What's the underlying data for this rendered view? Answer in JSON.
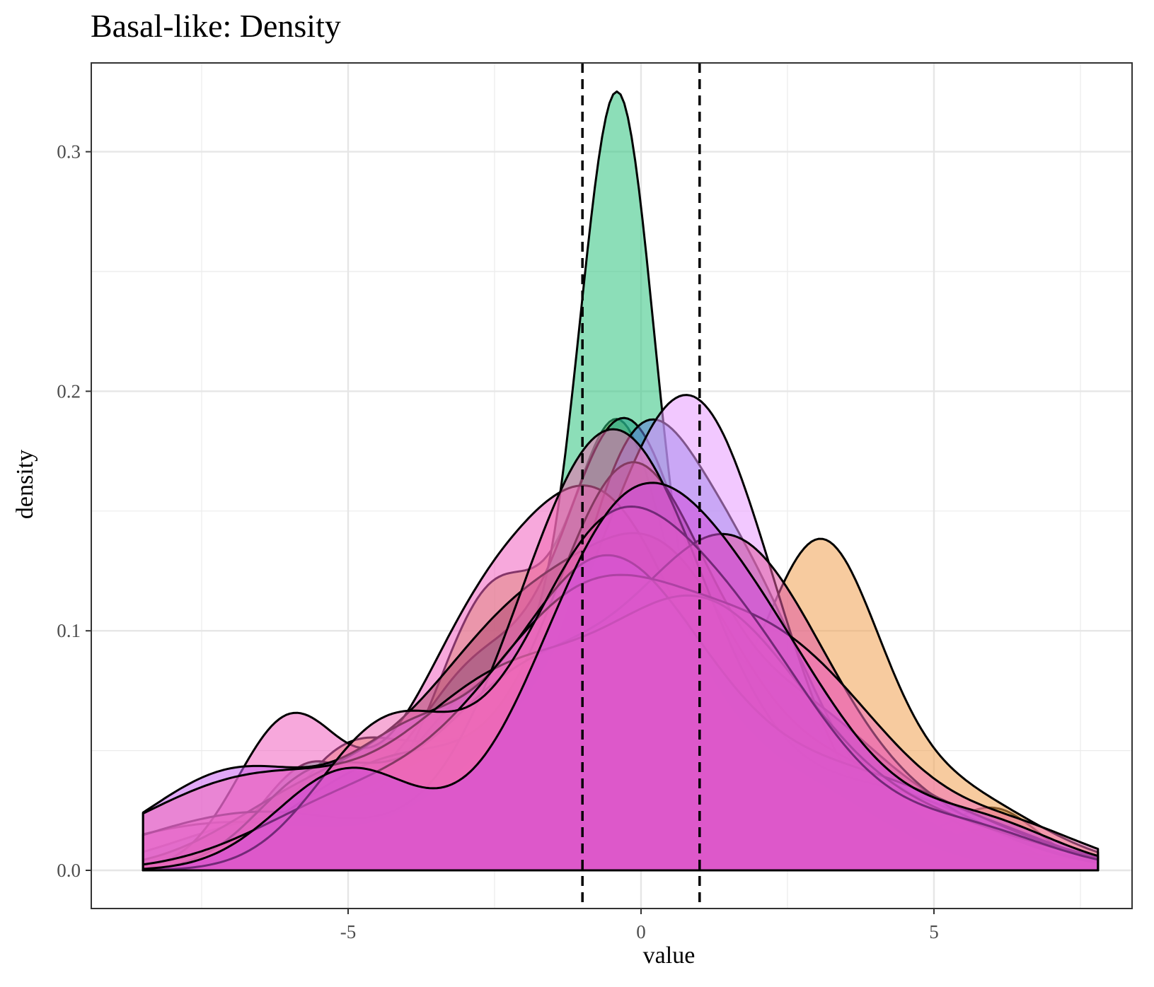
{
  "chart_data": {
    "type": "area",
    "title": "Basal-like: Density",
    "xlabel": "value",
    "ylabel": "density",
    "xlim": [
      -8.75,
      8.5
    ],
    "ylim": [
      -0.015,
      0.33
    ],
    "x_ticks": [
      -5,
      0,
      5
    ],
    "x_tick_labels": [
      "-5",
      "0",
      "5"
    ],
    "y_ticks": [
      0.0,
      0.1,
      0.2,
      0.3
    ],
    "y_tick_labels": [
      "0.0",
      "0.1",
      "0.2",
      "0.3"
    ],
    "x_range": [
      -8.5,
      7.8
    ],
    "grid": true,
    "legend": "none",
    "vlines": [
      -1,
      1
    ],
    "vline_style": "dashed",
    "series": [
      {
        "color": "#cdb838",
        "components": [
          [
            -5.4,
            1.0,
            0.07
          ],
          [
            -3.3,
            0.8,
            0.06
          ],
          [
            -2.3,
            0.9,
            0.22
          ],
          [
            -0.4,
            0.8,
            0.32
          ],
          [
            2.0,
            1.3,
            0.26
          ],
          [
            6.0,
            0.8,
            0.05
          ]
        ]
      },
      {
        "color": "#f0a050",
        "components": [
          [
            -5.0,
            1.0,
            0.12
          ],
          [
            -3.0,
            1.0,
            0.1
          ],
          [
            -0.3,
            1.2,
            0.34
          ],
          [
            3.0,
            1.0,
            0.3
          ],
          [
            5.0,
            1.6,
            0.14
          ]
        ]
      },
      {
        "color": "#2ec27e",
        "components": [
          [
            -5.6,
            0.9,
            0.1
          ],
          [
            -3.4,
            0.8,
            0.09
          ],
          [
            -1.9,
            0.9,
            0.16
          ],
          [
            -0.4,
            0.65,
            0.48
          ],
          [
            1.2,
            0.9,
            0.14
          ],
          [
            5.8,
            0.7,
            0.03
          ]
        ]
      },
      {
        "color": "#1fa187",
        "components": [
          [
            -5.0,
            1.2,
            0.08
          ],
          [
            -2.8,
            1.0,
            0.18
          ],
          [
            -0.3,
            1.1,
            0.5
          ],
          [
            2.5,
            1.2,
            0.2
          ],
          [
            5.0,
            1.4,
            0.04
          ]
        ]
      },
      {
        "color": "#5e7bd8",
        "components": [
          [
            -6.5,
            1.5,
            0.07
          ],
          [
            -3.0,
            1.5,
            0.18
          ],
          [
            -0.2,
            1.0,
            0.32
          ],
          [
            1.6,
            1.3,
            0.38
          ],
          [
            4.6,
            1.5,
            0.05
          ]
        ]
      },
      {
        "color": "#e89aff",
        "components": [
          [
            -7.0,
            2.0,
            0.1
          ],
          [
            -1.8,
            1.6,
            0.2
          ],
          [
            0.9,
            1.4,
            0.64
          ],
          [
            4.5,
            2.5,
            0.06
          ]
        ]
      },
      {
        "color": "#f060c0",
        "components": [
          [
            -6.0,
            0.9,
            0.14
          ],
          [
            -3.0,
            1.2,
            0.22
          ],
          [
            -0.7,
            1.4,
            0.5
          ],
          [
            2.5,
            1.6,
            0.14
          ]
        ]
      },
      {
        "color": "#b04870",
        "components": [
          [
            -5.5,
            1.5,
            0.12
          ],
          [
            -2.0,
            1.6,
            0.4
          ],
          [
            0.5,
            1.3,
            0.32
          ],
          [
            3.5,
            1.6,
            0.16
          ]
        ]
      },
      {
        "color": "#a04090",
        "components": [
          [
            -4.0,
            1.8,
            0.2
          ],
          [
            -0.2,
            1.3,
            0.48
          ],
          [
            2.8,
            1.5,
            0.22
          ],
          [
            6.0,
            1.2,
            0.04
          ]
        ]
      },
      {
        "color": "#f06ab0",
        "components": [
          [
            -6.5,
            2.0,
            0.1
          ],
          [
            -0.5,
            1.6,
            0.6
          ],
          [
            4.0,
            1.8,
            0.12
          ]
        ]
      },
      {
        "color": "#e05aa0",
        "components": [
          [
            -5.6,
            1.0,
            0.08
          ],
          [
            -2.0,
            1.7,
            0.3
          ],
          [
            1.6,
            1.6,
            0.48
          ],
          [
            5.0,
            1.5,
            0.06
          ]
        ]
      },
      {
        "color": "#c860f0",
        "components": [
          [
            -6.8,
            1.6,
            0.16
          ],
          [
            -4.0,
            1.0,
            0.08
          ],
          [
            -0.7,
            1.7,
            0.5
          ],
          [
            3.5,
            2.2,
            0.2
          ]
        ]
      },
      {
        "color": "#f068b8",
        "components": [
          [
            -6.5,
            2.0,
            0.2
          ],
          [
            -2.5,
            1.5,
            0.24
          ],
          [
            1.0,
            1.8,
            0.5
          ],
          [
            5.0,
            1.8,
            0.08
          ]
        ]
      },
      {
        "color": "#f070b8",
        "components": [
          [
            -5.0,
            1.6,
            0.1
          ],
          [
            -1.0,
            1.8,
            0.45
          ],
          [
            2.5,
            1.8,
            0.35
          ],
          [
            6.5,
            1.2,
            0.04
          ]
        ]
      },
      {
        "color": "#ee68b4",
        "components": [
          [
            -4.3,
            1.2,
            0.18
          ],
          [
            -0.8,
            1.4,
            0.4
          ],
          [
            1.6,
            1.6,
            0.36
          ],
          [
            5.5,
            1.4,
            0.06
          ]
        ]
      },
      {
        "color": "#d04ad8",
        "components": [
          [
            -5.0,
            1.2,
            0.12
          ],
          [
            -0.4,
            1.5,
            0.46
          ],
          [
            2.0,
            1.6,
            0.32
          ],
          [
            5.8,
            1.3,
            0.06
          ]
        ]
      }
    ]
  }
}
